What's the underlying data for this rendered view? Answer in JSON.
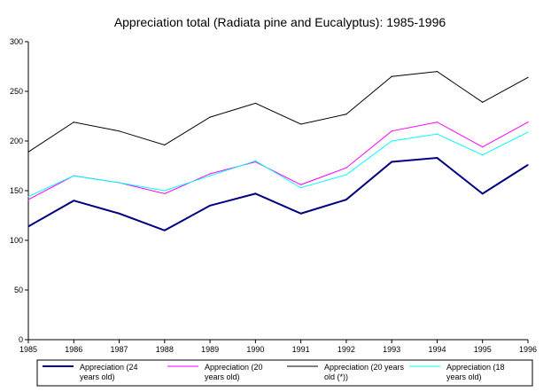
{
  "chart_data": {
    "type": "line",
    "title": "Appreciation total (Radiata pine and Eucalyptus): 1985-1996",
    "xlabel": "",
    "ylabel": "",
    "x": [
      "1985",
      "1986",
      "1987",
      "1988",
      "1989",
      "1990",
      "1991",
      "1992",
      "1993",
      "1994",
      "1995",
      "1996"
    ],
    "ylim": [
      0,
      300
    ],
    "yticks": [
      "0",
      "50",
      "100",
      "150",
      "200",
      "250",
      "300"
    ],
    "grid": false,
    "legend_position": "bottom",
    "series": [
      {
        "name_lines": [
          "Appreciation (24",
          "years old)"
        ],
        "color": "#000080",
        "values": [
          114,
          140,
          127,
          110,
          135,
          147,
          127,
          141,
          179,
          183,
          147,
          176
        ]
      },
      {
        "name_lines": [
          "Appreciation (20",
          "years old)"
        ],
        "color": "#ff00ff",
        "values": [
          141,
          165,
          158,
          147,
          167,
          179,
          156,
          173,
          210,
          219,
          194,
          219
        ]
      },
      {
        "name_lines": [
          "Appreciation (20  years",
          "old (*))"
        ],
        "color": "#000000",
        "values": [
          189,
          219,
          210,
          196,
          224,
          238,
          217,
          227,
          265,
          270,
          239,
          264
        ]
      },
      {
        "name_lines": [
          "Appreciation (18",
          "years old)"
        ],
        "color": "#00ffff",
        "values": [
          144,
          165,
          158,
          150,
          165,
          180,
          153,
          166,
          200,
          207,
          186,
          209
        ]
      }
    ]
  }
}
